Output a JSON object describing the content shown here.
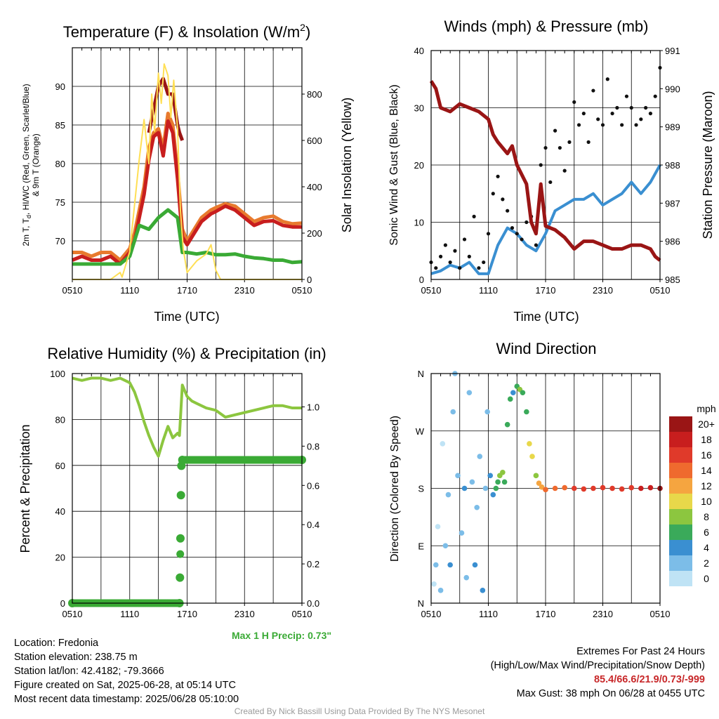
{
  "chart_data": [
    {
      "type": "line",
      "title": "Temperature (F) & Insolation (W/m²)",
      "title_main": "Temperature (F) & Insolation (W/m",
      "title_sup": "2",
      "title_tail": ")",
      "xlabel": "Time (UTC)",
      "ylabel_left_line1": "2m T, T",
      "ylabel_left_sub": "d",
      "ylabel_left_line1b": ", HI/WC (Red, Green, Scarlet/Blue)",
      "ylabel_left_line2": "& 9m T (Orange)",
      "ylabel_right": "Solar Insolation (Yellow)",
      "x_ticks": [
        "0510",
        "1110",
        "1710",
        "2310",
        "0510"
      ],
      "x_range_hours": [
        0,
        24
      ],
      "ylim_left": [
        65,
        95
      ],
      "yticks_left": [
        70,
        75,
        80,
        85,
        90
      ],
      "ylim_right": [
        0,
        1000
      ],
      "yticks_right": [
        0,
        200,
        400,
        600,
        800
      ],
      "series": [
        {
          "color": "#e87a2e",
          "axis": "left",
          "hours": [
            0,
            1,
            2,
            3,
            4,
            5,
            6,
            6.5,
            7,
            7.5,
            8,
            8.5,
            9,
            9.5,
            10,
            10.5,
            11,
            11.5,
            12,
            12.5,
            13,
            13.5,
            14,
            14.5,
            15,
            16,
            17,
            18,
            19,
            20,
            21,
            22,
            23,
            24
          ],
          "values": [
            68.5,
            68.5,
            68,
            68.5,
            68.5,
            67.5,
            69,
            71,
            74,
            77,
            82,
            84,
            84.5,
            82,
            86.5,
            85,
            79,
            71.5,
            70,
            71,
            72,
            73,
            73.5,
            74,
            74.3,
            74.8,
            74.5,
            73.5,
            72.5,
            73,
            73.2,
            72.5,
            72.2,
            72.3
          ]
        },
        {
          "color": "#c81e1e",
          "axis": "left",
          "hours": [
            0,
            1,
            2,
            3,
            4,
            5,
            6,
            6.5,
            7,
            7.5,
            8,
            8.5,
            9,
            9.5,
            10,
            10.5,
            11,
            11.5,
            12,
            12.5,
            13,
            13.5,
            14,
            14.5,
            15,
            16,
            17,
            18,
            19,
            20,
            21,
            22,
            23,
            24
          ],
          "values": [
            67.5,
            68,
            67.5,
            67.5,
            68,
            67,
            68.5,
            70,
            73,
            76,
            80.5,
            83.5,
            84,
            81,
            85.5,
            84,
            78,
            70.5,
            69.5,
            70.5,
            71.5,
            72.5,
            73,
            73.5,
            73.8,
            74.5,
            74,
            73,
            72,
            72.5,
            72.6,
            72,
            71.8,
            71.8
          ]
        },
        {
          "color": "#9a1515",
          "axis": "left",
          "hours": [
            8,
            8.5,
            9,
            9.5,
            10,
            10.5,
            11,
            11.2,
            11.5
          ],
          "values": [
            84,
            87,
            90,
            91,
            89,
            89,
            85,
            84,
            83
          ]
        },
        {
          "color": "#3aaa35",
          "axis": "left",
          "hours": [
            0,
            1,
            2,
            3,
            4,
            5,
            6,
            6.5,
            7,
            8,
            9,
            10,
            11,
            11.5,
            12,
            13,
            14,
            15,
            16,
            17,
            18,
            19,
            20,
            21,
            22,
            23,
            24
          ],
          "values": [
            67,
            67,
            67,
            67,
            67,
            67,
            68,
            70,
            72,
            71.5,
            73,
            74,
            73,
            68.5,
            68.5,
            68.3,
            68.5,
            68.2,
            68.2,
            68.3,
            68,
            67.8,
            67.7,
            67.5,
            67.5,
            67.2,
            67.3
          ]
        },
        {
          "color": "#ffdf55",
          "axis": "right",
          "hours": [
            0,
            4,
            5,
            5.2,
            6,
            6.5,
            7,
            7.5,
            8,
            8.3,
            8.6,
            9,
            9.3,
            9.6,
            10,
            10.3,
            10.6,
            11,
            11.3,
            11.6,
            12,
            13,
            14,
            14.5,
            15,
            15.5,
            16,
            17,
            20,
            24
          ],
          "values": [
            0,
            0,
            30,
            10,
            120,
            320,
            520,
            690,
            500,
            800,
            640,
            890,
            760,
            930,
            880,
            700,
            860,
            650,
            300,
            130,
            30,
            80,
            110,
            150,
            40,
            0,
            0,
            0,
            0,
            0
          ]
        }
      ]
    },
    {
      "type": "scatter",
      "title": "Winds (mph) & Pressure (mb)",
      "xlabel": "Time (UTC)",
      "ylabel_left": "Sonic Wind & Gust (Blue, Black)",
      "ylabel_right": "Station Pressure (Maroon)",
      "x_ticks": [
        "0510",
        "1110",
        "1710",
        "2310",
        "0510"
      ],
      "x_range_hours": [
        0,
        24
      ],
      "ylim_left": [
        0,
        40
      ],
      "yticks_left": [
        0,
        10,
        20,
        30,
        40
      ],
      "ylim_right": [
        985,
        991
      ],
      "yticks_right": [
        985,
        986,
        987,
        988,
        989,
        990,
        991
      ],
      "series": [
        {
          "name": "wind",
          "color": "#3a8fd1",
          "axis": "left",
          "hours": [
            0,
            1,
            2,
            3,
            4,
            5,
            6,
            7,
            8,
            9,
            10,
            11,
            12,
            13,
            14,
            15,
            16,
            17,
            18,
            19,
            20,
            21,
            22,
            23,
            24
          ],
          "values": [
            1,
            1.5,
            2.5,
            2,
            3,
            1,
            1,
            6,
            9,
            8,
            6,
            5,
            8,
            12,
            13,
            14,
            14,
            15,
            13,
            14,
            15,
            17,
            15,
            17,
            20
          ]
        },
        {
          "name": "gust",
          "color": "#111111",
          "axis": "left",
          "hours": [
            0,
            0.5,
            1,
            1.5,
            2,
            2.5,
            3,
            3.5,
            4,
            4.5,
            5,
            5.5,
            6,
            6.5,
            7,
            7.5,
            8,
            8.5,
            9,
            9.5,
            10,
            10.5,
            11,
            11.5,
            12,
            12.5,
            13,
            13.5,
            14,
            14.5,
            15,
            15.5,
            16,
            16.5,
            17,
            17.5,
            18,
            18.5,
            19,
            19.5,
            20,
            20.5,
            21,
            21.5,
            22,
            22.5,
            23,
            23.5,
            24
          ],
          "values": [
            3,
            2,
            4,
            6,
            3,
            5,
            2,
            7,
            4,
            11,
            2,
            3,
            8,
            15,
            18,
            14,
            12,
            9,
            8,
            7,
            10,
            11,
            6,
            20,
            23,
            17,
            26,
            23,
            19,
            24,
            31,
            27,
            29,
            24,
            33,
            28,
            27,
            35,
            29,
            30,
            27,
            32,
            30,
            27,
            28,
            30,
            29,
            32,
            37
          ]
        },
        {
          "name": "pressure",
          "color": "#9a1515",
          "axis": "right",
          "hours": [
            0,
            0.5,
            1,
            2,
            3,
            4,
            5,
            6,
            6.5,
            7,
            8,
            8.5,
            9,
            10,
            10.5,
            11,
            11.5,
            12,
            13,
            14,
            15,
            16,
            17,
            18,
            19,
            20,
            21,
            22,
            23,
            23.5,
            24
          ],
          "values": [
            990.2,
            990.0,
            989.5,
            989.4,
            989.6,
            989.5,
            989.4,
            989.2,
            988.8,
            988.6,
            988.3,
            988.5,
            988.0,
            987.5,
            986.5,
            986.2,
            987.5,
            986.4,
            986.3,
            986.1,
            985.8,
            986.0,
            986.0,
            985.9,
            985.8,
            985.8,
            985.9,
            985.9,
            985.8,
            985.6,
            985.5
          ]
        }
      ]
    },
    {
      "type": "line",
      "title": "Relative Humidity (%) & Precipitation (in)",
      "ylabel_left": "Percent & Precipitation",
      "x_ticks": [
        "0510",
        "1110",
        "1710",
        "2310",
        "0510"
      ],
      "x_range_hours": [
        0,
        24
      ],
      "ylim_left": [
        0,
        100
      ],
      "yticks_left": [
        0,
        20,
        40,
        60,
        80,
        100
      ],
      "ylim_right": [
        0,
        1.17
      ],
      "yticks_right": [
        0.0,
        0.2,
        0.4,
        0.6,
        0.8,
        1.0
      ],
      "right_tick_labels": [
        "0.0",
        "0.2",
        "0.4",
        "0.6",
        "0.8",
        "1.0"
      ],
      "series": [
        {
          "name": "rh",
          "color": "#8cc63f",
          "axis": "left",
          "hours": [
            0,
            1,
            2,
            3,
            4,
            5,
            6,
            6.5,
            7,
            7.5,
            8,
            8.5,
            9,
            9.5,
            10,
            10.5,
            11,
            11.2,
            11.5,
            12,
            12.5,
            13,
            14,
            15,
            16,
            17,
            18,
            19,
            20,
            21,
            22,
            23,
            24
          ],
          "values": [
            98,
            97,
            98,
            98,
            97,
            98,
            96,
            92,
            86,
            79,
            73,
            68,
            64,
            71,
            77,
            72,
            74,
            73,
            95,
            90,
            88,
            87,
            85,
            84,
            81,
            82,
            83,
            84,
            85,
            86,
            86,
            85,
            85
          ]
        },
        {
          "name": "precip",
          "color": "#3aaa35",
          "axis": "right",
          "hours": [
            0,
            11.2,
            11.25,
            11.3,
            11.35,
            11.4,
            11.5,
            24
          ],
          "values": [
            0,
            0,
            0.13,
            0.33,
            0.55,
            0.7,
            0.73,
            0.73
          ]
        }
      ]
    },
    {
      "type": "scatter",
      "title": "Wind Direction",
      "ylabel_left": "Direction (Colored By Speed)",
      "x_ticks": [
        "0510",
        "1110",
        "1710",
        "2310",
        "0510"
      ],
      "x_range_hours": [
        0,
        24
      ],
      "ylim_left": [
        0,
        360
      ],
      "y_ticks": [
        "N",
        "E",
        "S",
        "W",
        "N"
      ],
      "y_tick_values": [
        0,
        90,
        180,
        270,
        360
      ],
      "legend_title": "mph",
      "legend": [
        "20+",
        "18",
        "16",
        "14",
        "12",
        "10",
        "8",
        "6",
        "4",
        "2",
        "0"
      ],
      "legend_colors": [
        "#9a1515",
        "#c81e1e",
        "#e03a2a",
        "#ef6a2e",
        "#f5a540",
        "#e8d84a",
        "#8cc63f",
        "#3aaa5a",
        "#3a8fd1",
        "#7cbde8",
        "#bfe3f5"
      ],
      "points": [
        [
          0.3,
          30,
          0
        ],
        [
          0.5,
          60,
          1
        ],
        [
          0.7,
          120,
          0
        ],
        [
          1.0,
          20,
          1
        ],
        [
          1.2,
          250,
          0
        ],
        [
          1.5,
          90,
          2
        ],
        [
          1.8,
          170,
          1
        ],
        [
          2.0,
          60,
          3
        ],
        [
          2.3,
          300,
          2
        ],
        [
          2.5,
          360,
          1
        ],
        [
          2.8,
          200,
          1
        ],
        [
          3.2,
          110,
          2
        ],
        [
          3.5,
          180,
          3
        ],
        [
          3.7,
          40,
          2
        ],
        [
          4.0,
          330,
          1
        ],
        [
          4.3,
          190,
          2
        ],
        [
          4.6,
          60,
          3
        ],
        [
          4.8,
          150,
          1
        ],
        [
          5.1,
          230,
          2
        ],
        [
          5.4,
          20,
          3
        ],
        [
          5.7,
          180,
          2
        ],
        [
          5.9,
          300,
          1
        ],
        [
          6.2,
          200,
          3
        ],
        [
          6.5,
          170,
          4
        ],
        [
          6.8,
          180,
          5
        ],
        [
          7.0,
          190,
          6
        ],
        [
          7.2,
          200,
          7
        ],
        [
          7.5,
          205,
          8
        ],
        [
          7.7,
          190,
          6
        ],
        [
          8.0,
          280,
          5
        ],
        [
          8.3,
          320,
          6
        ],
        [
          8.6,
          330,
          4
        ],
        [
          9.0,
          340,
          5
        ],
        [
          9.3,
          335,
          7
        ],
        [
          9.6,
          330,
          6
        ],
        [
          10.0,
          300,
          5
        ],
        [
          10.3,
          250,
          10
        ],
        [
          10.6,
          230,
          9
        ],
        [
          11.0,
          200,
          8
        ],
        [
          11.3,
          188,
          11
        ],
        [
          11.6,
          182,
          12
        ],
        [
          12.0,
          178,
          13
        ],
        [
          13.0,
          180,
          14
        ],
        [
          14.0,
          181,
          14
        ],
        [
          15.0,
          180,
          15
        ],
        [
          16.0,
          179,
          15
        ],
        [
          17.0,
          180,
          15
        ],
        [
          18.0,
          181,
          16
        ],
        [
          19.0,
          180,
          15
        ],
        [
          20.0,
          179,
          16
        ],
        [
          21.0,
          181,
          16
        ],
        [
          22.0,
          180,
          17
        ],
        [
          23.0,
          181,
          17
        ],
        [
          24.0,
          180,
          20
        ]
      ]
    }
  ],
  "info_left": [
    "Location: Fredonia",
    "Station elevation: 238.75 m",
    "Station lat/lon: 42.4182; -79.3666",
    "Figure created on Sat, 2025-06-28, at 05:14 UTC",
    "Most recent data timestamp: 2025/06/28 05:10:00"
  ],
  "precip_note": "Max 1 H Precip: 0.73\"",
  "extremes_title": "Extremes For Past 24 Hours",
  "extremes_subtitle": "(High/Low/Max Wind/Precipitation/Snow Depth)",
  "extremes_values": "85.4/66.6/21.9/0.73/-999",
  "max_gust": "Max Gust: 38 mph On 06/28 at 0455 UTC",
  "credit": "Created By Nick Bassill Using Data Provided By The NYS Mesonet",
  "colors": {
    "extremes": "#c8282a",
    "precip_note": "#3aaa35",
    "credit": "#9a9a9a"
  }
}
